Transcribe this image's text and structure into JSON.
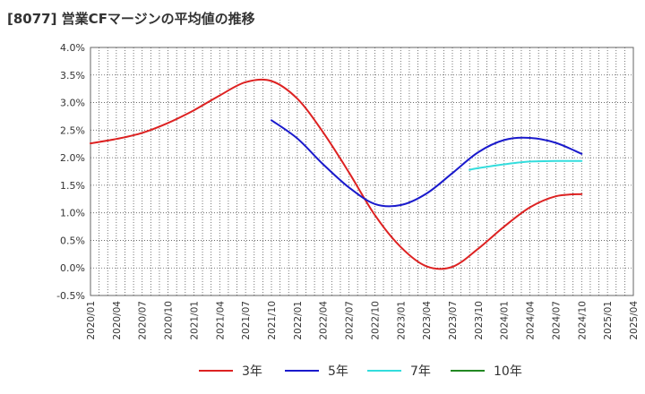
{
  "title": "[8077]  営業CFマージンの平均値の推移",
  "chart_data": {
    "type": "line",
    "title": "[8077]  営業CFマージンの平均値の推移",
    "xlabel": "",
    "ylabel": "",
    "y_axis": {
      "min": -0.5,
      "max": 4.0,
      "step": 0.5,
      "tick_labels": [
        "-0.5%",
        "0.0%",
        "0.5%",
        "1.0%",
        "1.5%",
        "2.0%",
        "2.5%",
        "3.0%",
        "3.5%",
        "4.0%"
      ]
    },
    "x_axis": {
      "tick_labels": [
        "2020/01",
        "2020/04",
        "2020/07",
        "2020/10",
        "2021/01",
        "2021/04",
        "2021/07",
        "2021/10",
        "2022/01",
        "2022/04",
        "2022/07",
        "2022/10",
        "2023/01",
        "2023/04",
        "2023/07",
        "2023/10",
        "2024/01",
        "2024/04",
        "2024/07",
        "2024/10",
        "2025/01",
        "2025/04"
      ]
    },
    "grid": true,
    "legend_position": "bottom",
    "series": [
      {
        "name": "3年",
        "color": "#dd2222",
        "points": [
          [
            "2020/01",
            2.26
          ],
          [
            "2020/04",
            2.34
          ],
          [
            "2020/07",
            2.45
          ],
          [
            "2020/10",
            2.63
          ],
          [
            "2021/01",
            2.86
          ],
          [
            "2021/04",
            3.13
          ],
          [
            "2021/07",
            3.37
          ],
          [
            "2021/10",
            3.39
          ],
          [
            "2022/01",
            3.07
          ],
          [
            "2022/04",
            2.46
          ],
          [
            "2022/07",
            1.73
          ],
          [
            "2022/10",
            0.96
          ],
          [
            "2023/01",
            0.38
          ],
          [
            "2023/04",
            0.03
          ],
          [
            "2023/07",
            0.02
          ],
          [
            "2023/10",
            0.35
          ],
          [
            "2024/01",
            0.75
          ],
          [
            "2024/04",
            1.1
          ],
          [
            "2024/07",
            1.3
          ],
          [
            "2024/10",
            1.34
          ]
        ]
      },
      {
        "name": "5年",
        "color": "#1a1acc",
        "points": [
          [
            "2021/10",
            2.68
          ],
          [
            "2022/01",
            2.35
          ],
          [
            "2022/04",
            1.88
          ],
          [
            "2022/07",
            1.46
          ],
          [
            "2022/10",
            1.16
          ],
          [
            "2023/01",
            1.14
          ],
          [
            "2023/04",
            1.35
          ],
          [
            "2023/07",
            1.72
          ],
          [
            "2023/10",
            2.1
          ],
          [
            "2024/01",
            2.32
          ],
          [
            "2024/04",
            2.36
          ],
          [
            "2024/07",
            2.27
          ],
          [
            "2024/10",
            2.07
          ]
        ]
      },
      {
        "name": "7年",
        "color": "#33dddd",
        "points": [
          [
            "2023/09",
            1.78
          ],
          [
            "2023/10",
            1.81
          ],
          [
            "2024/01",
            1.88
          ],
          [
            "2024/04",
            1.93
          ],
          [
            "2024/07",
            1.94
          ],
          [
            "2024/10",
            1.94
          ]
        ]
      },
      {
        "name": "10年",
        "color": "#228822",
        "points": []
      }
    ]
  }
}
